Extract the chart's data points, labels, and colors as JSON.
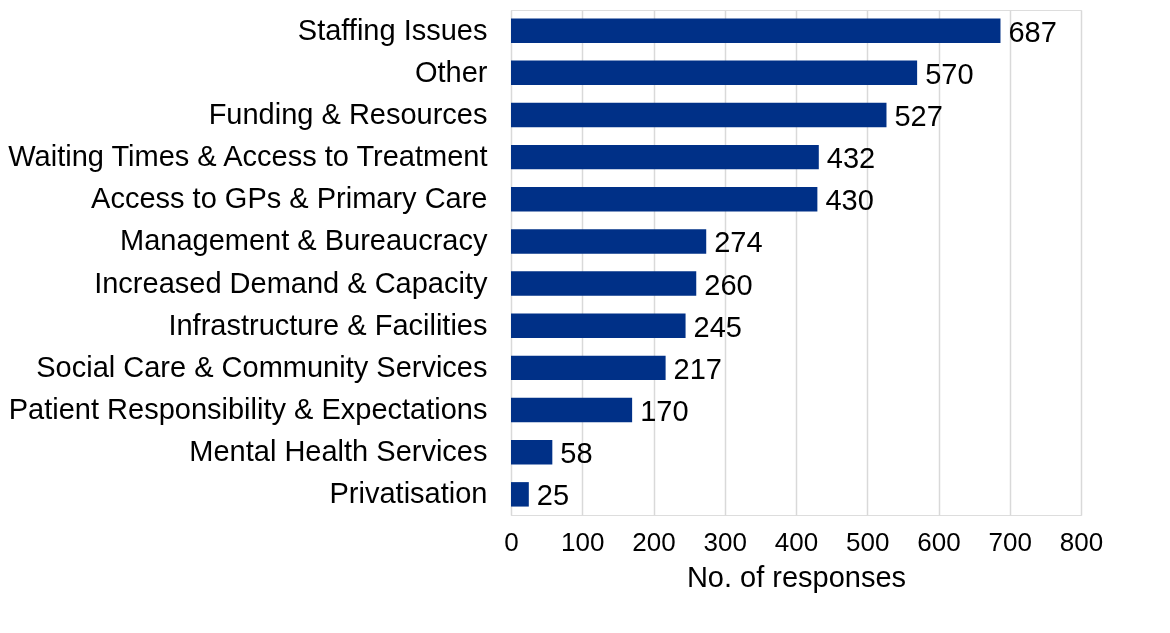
{
  "chart_data": {
    "type": "bar",
    "orientation": "horizontal",
    "categories": [
      "Staffing Issues",
      "Other",
      "Funding & Resources",
      "Waiting Times & Access to Treatment",
      "Access to GPs & Primary Care",
      "Management & Bureaucracy",
      "Increased Demand & Capacity",
      "Infrastructure & Facilities",
      "Social Care & Community Services",
      "Patient Responsibility & Expectations",
      "Mental Health Services",
      "Privatisation"
    ],
    "values": [
      687,
      570,
      527,
      432,
      430,
      274,
      260,
      245,
      217,
      170,
      58,
      25
    ],
    "color": "#003087",
    "xlabel": "No. of responses",
    "xlim": [
      0,
      800
    ],
    "xticks": [
      0,
      100,
      200,
      300,
      400,
      500,
      600,
      700,
      800
    ],
    "grid": "x",
    "data_labels": true
  }
}
